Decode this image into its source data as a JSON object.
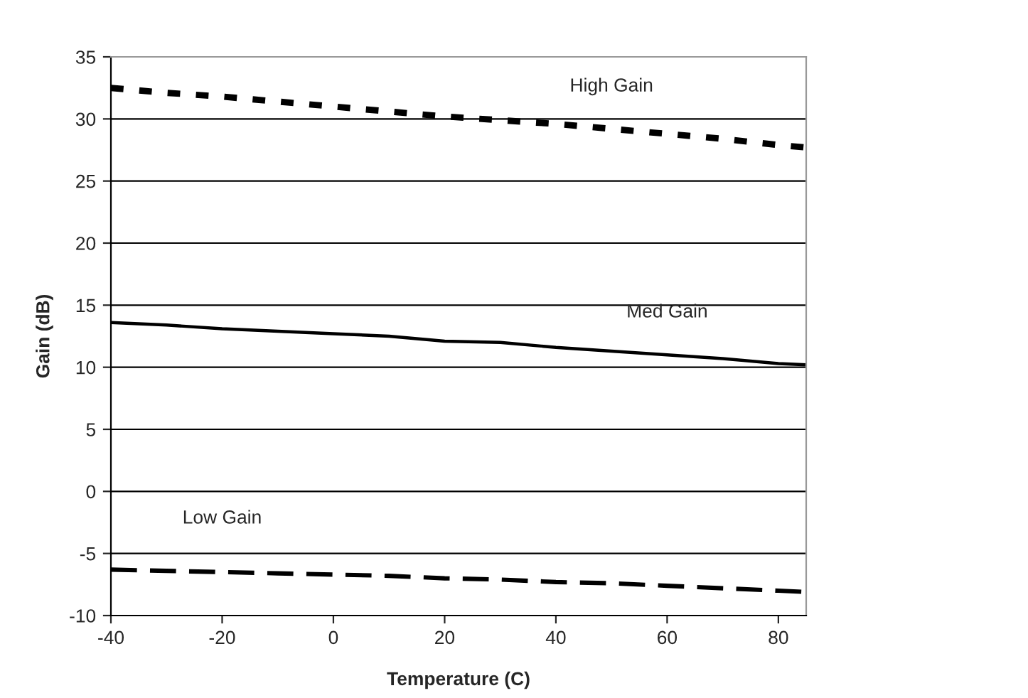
{
  "chart_data": {
    "type": "line",
    "xlabel": "Temperature (C)",
    "ylabel": "Gain (dB)",
    "x": [
      -40,
      -30,
      -20,
      -10,
      0,
      10,
      20,
      30,
      40,
      50,
      60,
      70,
      80,
      85
    ],
    "series": [
      {
        "name": "High Gain",
        "color": "#000000",
        "line_style": "dotted",
        "values": [
          32.5,
          32.1,
          31.8,
          31.4,
          31.0,
          30.6,
          30.2,
          29.9,
          29.6,
          29.2,
          28.8,
          28.4,
          27.9,
          27.7
        ]
      },
      {
        "name": "Med Gain",
        "color": "#000000",
        "line_style": "solid",
        "values": [
          13.6,
          13.4,
          13.1,
          12.9,
          12.7,
          12.5,
          12.1,
          12.0,
          11.6,
          11.3,
          11.0,
          10.7,
          10.3,
          10.2
        ]
      },
      {
        "name": "Low Gain",
        "color": "#000000",
        "line_style": "dashed",
        "values": [
          -6.3,
          -6.4,
          -6.5,
          -6.6,
          -6.7,
          -6.8,
          -7.0,
          -7.1,
          -7.3,
          -7.4,
          -7.6,
          -7.8,
          -8.0,
          -8.1
        ]
      }
    ],
    "xlim": [
      -40,
      85
    ],
    "ylim": [
      -10,
      35
    ],
    "xticks": [
      -40,
      -20,
      0,
      20,
      40,
      60,
      80
    ],
    "yticks": [
      -10,
      -5,
      0,
      5,
      10,
      15,
      20,
      25,
      30,
      35
    ],
    "grid": "y",
    "legend": false,
    "marker": "none"
  }
}
